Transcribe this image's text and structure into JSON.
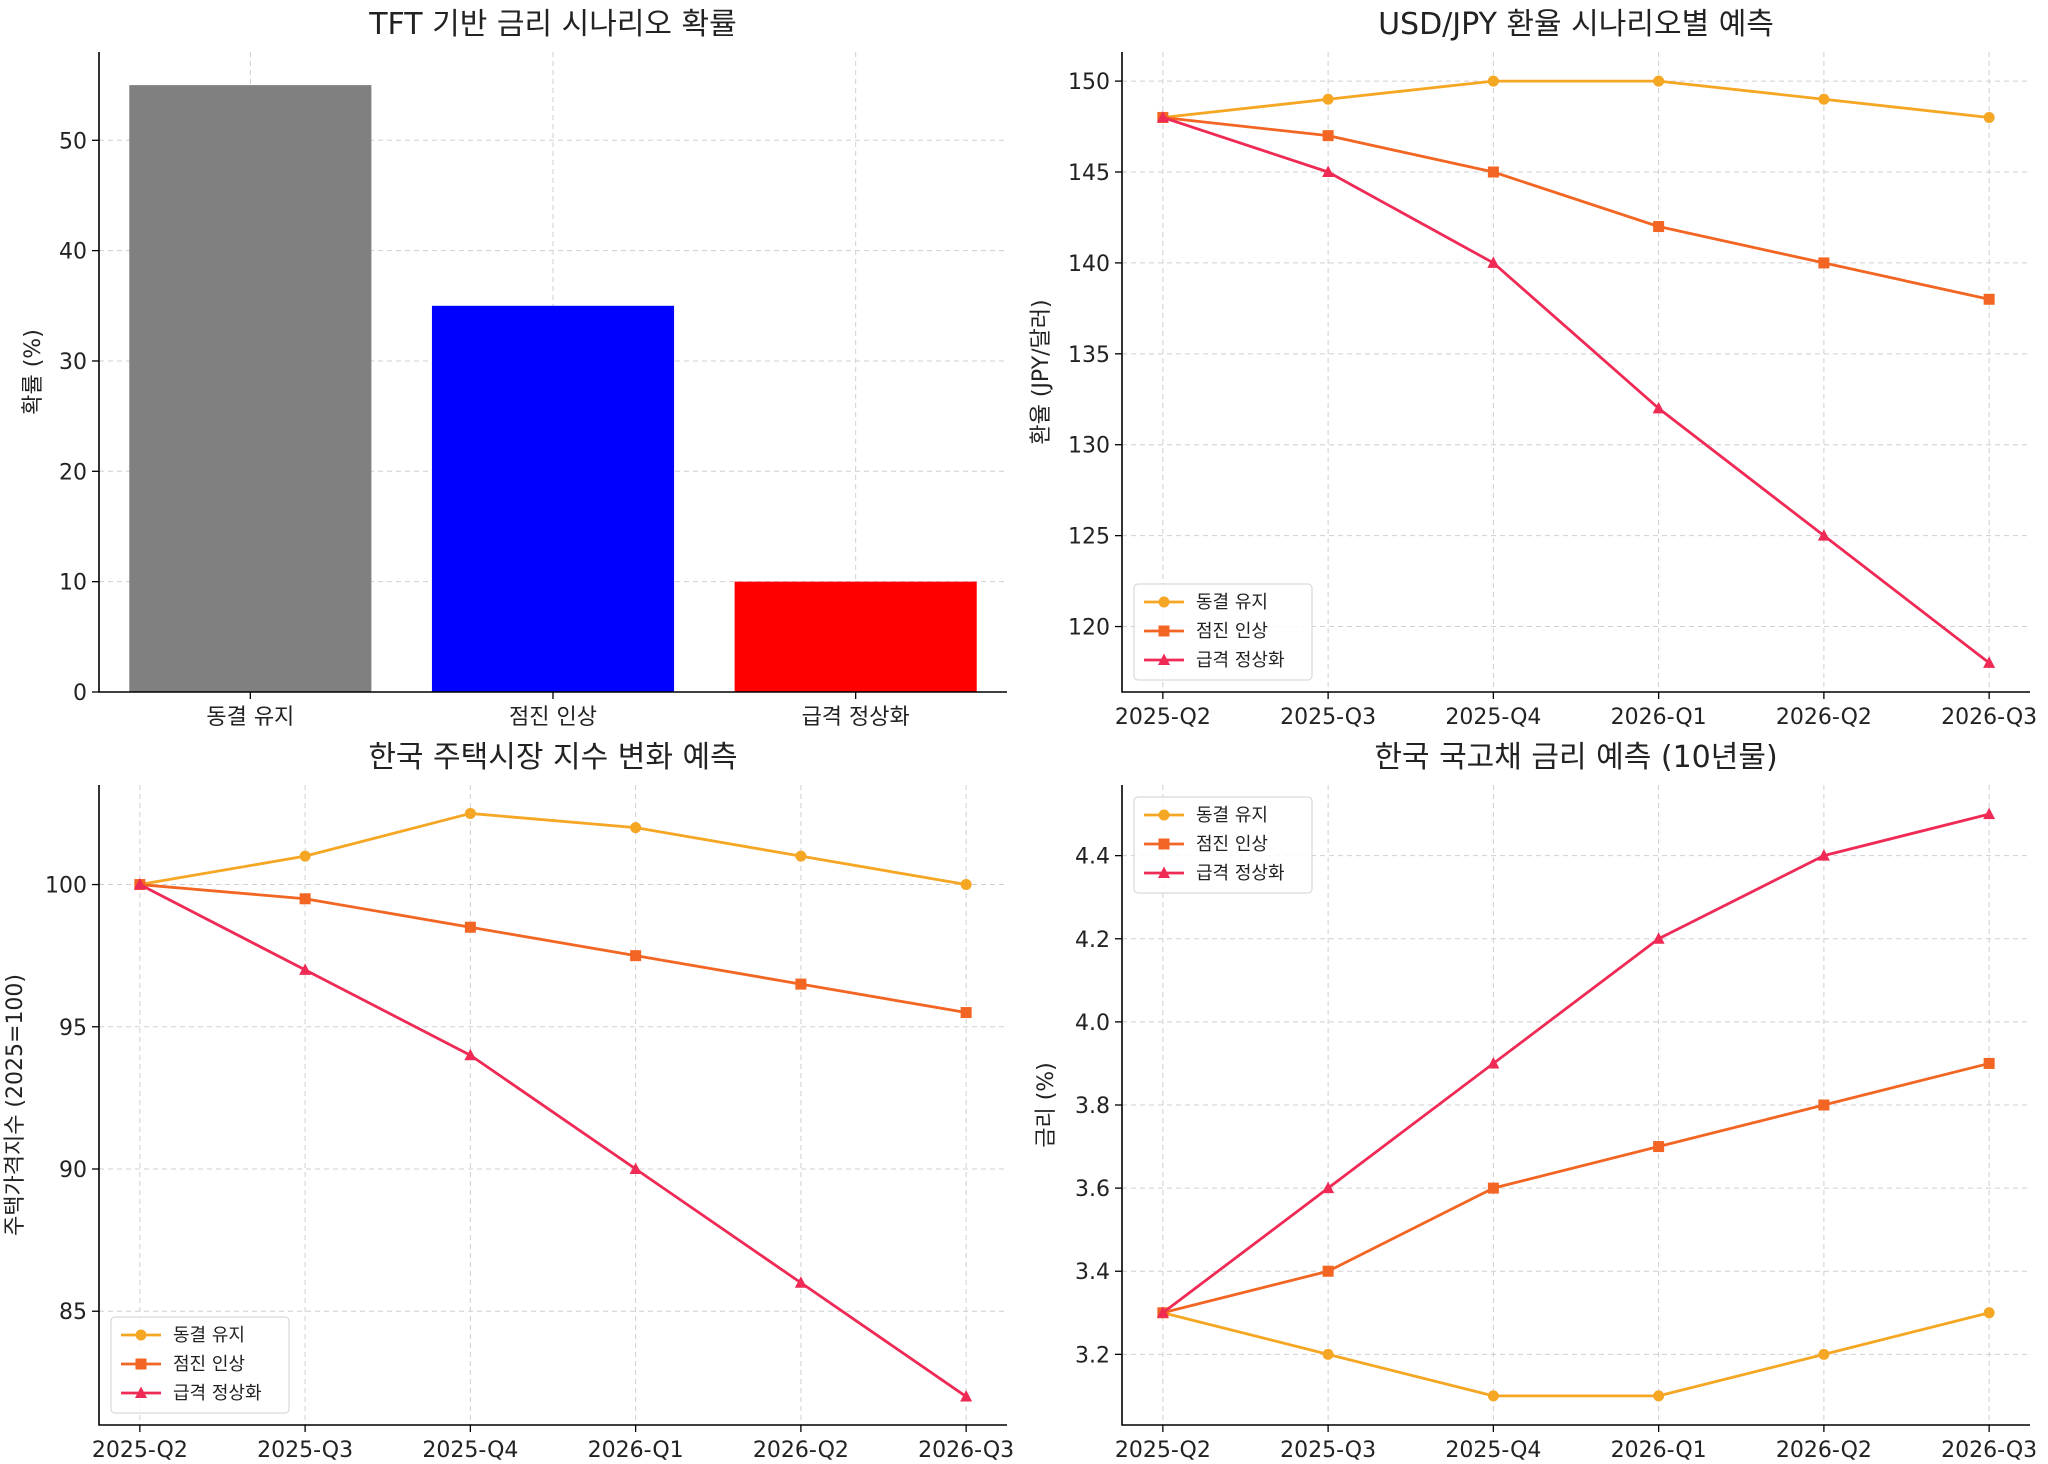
{
  "chart_data": [
    {
      "type": "bar",
      "title": "TFT 기반 금리 시나리오 확률",
      "xlabel": "",
      "ylabel": "확률 (%)",
      "categories": [
        "동결 유지",
        "점진 인상",
        "급격 정상화"
      ],
      "values": [
        55,
        35,
        10
      ],
      "colors": [
        "#808080",
        "#0000ff",
        "#ff0000"
      ],
      "ylim": [
        0,
        58
      ],
      "yticks": [
        0,
        10,
        20,
        30,
        40,
        50
      ],
      "grid": true
    },
    {
      "type": "line",
      "title": "USD/JPY 환율 시나리오별 예측",
      "xlabel": "",
      "ylabel": "환율 (JPY/달러)",
      "x": [
        "2025-Q2",
        "2025-Q3",
        "2025-Q4",
        "2026-Q1",
        "2026-Q2",
        "2026-Q3"
      ],
      "series": [
        {
          "name": "동결 유지",
          "values": [
            148,
            149,
            150,
            150,
            149,
            148
          ],
          "color": "#f5a623",
          "marker": "circle"
        },
        {
          "name": "점진 인상",
          "values": [
            148,
            147,
            145,
            142,
            140,
            138
          ],
          "color": "#f26522",
          "marker": "square"
        },
        {
          "name": "급격 정상화",
          "values": [
            148,
            145,
            140,
            132,
            125,
            118
          ],
          "color": "#ee2a55",
          "marker": "triangle"
        }
      ],
      "ylim": [
        116.4,
        151.6
      ],
      "yticks": [
        120,
        125,
        130,
        135,
        140,
        145,
        150
      ],
      "legend": "lower-left",
      "grid": true
    },
    {
      "type": "line",
      "title": "한국 주택시장 지수 변화 예측",
      "xlabel": "",
      "ylabel": "주택가격지수 (2025=100)",
      "x": [
        "2025-Q2",
        "2025-Q3",
        "2025-Q4",
        "2026-Q1",
        "2026-Q2",
        "2026-Q3"
      ],
      "series": [
        {
          "name": "동결 유지",
          "values": [
            100,
            101,
            102.5,
            102,
            101,
            100
          ],
          "color": "#f5a623",
          "marker": "circle"
        },
        {
          "name": "점진 인상",
          "values": [
            100,
            99.5,
            98.5,
            97.5,
            96.5,
            95.5
          ],
          "color": "#f26522",
          "marker": "square"
        },
        {
          "name": "급격 정상화",
          "values": [
            100,
            97,
            94,
            90,
            86,
            82
          ],
          "color": "#ee2a55",
          "marker": "triangle"
        }
      ],
      "ylim": [
        81.0,
        103.5
      ],
      "yticks": [
        85,
        90,
        95,
        100
      ],
      "legend": "lower-left",
      "grid": true
    },
    {
      "type": "line",
      "title": "한국 국고채 금리 예측 (10년물)",
      "xlabel": "",
      "ylabel": "금리 (%)",
      "x": [
        "2025-Q2",
        "2025-Q3",
        "2025-Q4",
        "2026-Q1",
        "2026-Q2",
        "2026-Q3"
      ],
      "series": [
        {
          "name": "동결 유지",
          "values": [
            3.3,
            3.2,
            3.1,
            3.1,
            3.2,
            3.3
          ],
          "color": "#f5a623",
          "marker": "circle"
        },
        {
          "name": "점진 인상",
          "values": [
            3.3,
            3.4,
            3.6,
            3.7,
            3.8,
            3.9
          ],
          "color": "#f26522",
          "marker": "square"
        },
        {
          "name": "급격 정상화",
          "values": [
            3.3,
            3.6,
            3.9,
            4.2,
            4.4,
            4.5
          ],
          "color": "#ee2a55",
          "marker": "triangle"
        }
      ],
      "ylim": [
        3.03,
        4.57
      ],
      "yticks": [
        3.2,
        3.4,
        3.6,
        3.8,
        4.0,
        4.2,
        4.4
      ],
      "legend": "upper-left",
      "grid": true
    }
  ]
}
